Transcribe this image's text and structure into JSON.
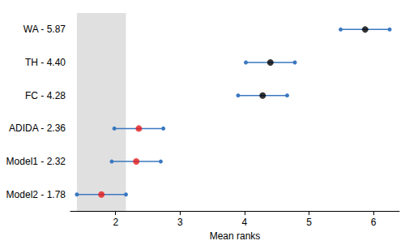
{
  "chart_data": {
    "type": "scatter",
    "categories": [
      "WA - 5.87",
      "TH - 4.40",
      "FC - 4.28",
      "ADIDA - 2.36",
      "Model1 - 2.32",
      "Model2 - 1.78"
    ],
    "values": [
      5.87,
      4.4,
      4.28,
      2.36,
      2.32,
      1.78
    ],
    "lower": [
      5.49,
      4.02,
      3.9,
      1.98,
      1.94,
      1.4
    ],
    "upper": [
      6.25,
      4.78,
      4.66,
      2.74,
      2.7,
      2.16
    ],
    "colors": [
      "#000000",
      "#000000",
      "#000000",
      "#e31a1c",
      "#e31a1c",
      "#e31a1c"
    ],
    "band": [
      1.4,
      2.16
    ],
    "x_label": "Mean ranks",
    "xlim": [
      1.3,
      6.4
    ],
    "xticks": [
      2,
      3,
      4,
      5,
      6
    ],
    "grid": false
  }
}
